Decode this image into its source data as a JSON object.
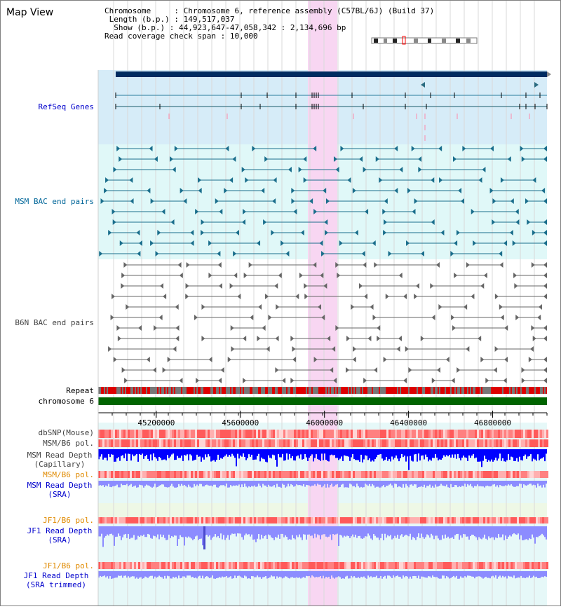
{
  "window": {
    "title": "Map View"
  },
  "info": {
    "chromosome_label": "Chromosome",
    "chromosome_value": "Chromosome 6, reference assembly (C57BL/6J) (Build 37)",
    "length_label": "Length (b.p.)",
    "length_value": "149,517,037",
    "show_label": "Show (b.p.)",
    "show_value": "44,923,647-47,058,342 : 2,134,696 bp",
    "span_label": "Read coverage check span",
    "span_value": "10,000"
  },
  "tracks": {
    "refseq": "RefSeq Genes",
    "msm_bac": "MSM BAC end pairs",
    "b6n_bac": "B6N BAC end pairs",
    "repeat": "Repeat",
    "chromosome": "chromosome 6",
    "dbsnp": "dbSNP(Mouse)",
    "msm_b6_pol": "MSM/B6 pol.",
    "msm_read_depth_cap": "MSM Read Depth\n(Capillary)",
    "msm_b6_pol_sra": "MSM/B6 pol.",
    "msm_read_depth_sra": "MSM Read Depth\n(SRA)",
    "jf1_b6_pol": "JF1/B6 pol.",
    "jf1_read_depth_sra": "JF1 Read Depth\n(SRA)",
    "jf1_b6_pol_trim": "JF1/B6 pol.",
    "jf1_read_depth_trim": "JF1 Read Depth\n(SRA trimmed)"
  },
  "axis": {
    "start_bp": 44923647,
    "end_bp": 47058342,
    "ticks": [
      "45200000",
      "45600000",
      "46000000",
      "46400000",
      "46800000"
    ]
  },
  "colors": {
    "refseq_bg": "#d6ecf8",
    "msm_bg": "#e0f8f8",
    "highlight": "#f8d6f2",
    "gene_bar": "#002b60",
    "chromosome_bar": "#006400",
    "repeat_red": "#dd0000",
    "repeat_grey": "#777777",
    "pol_red": "#ff4a4a",
    "depth_dark": "#0000ff",
    "depth_light": "#8c8cff"
  }
}
